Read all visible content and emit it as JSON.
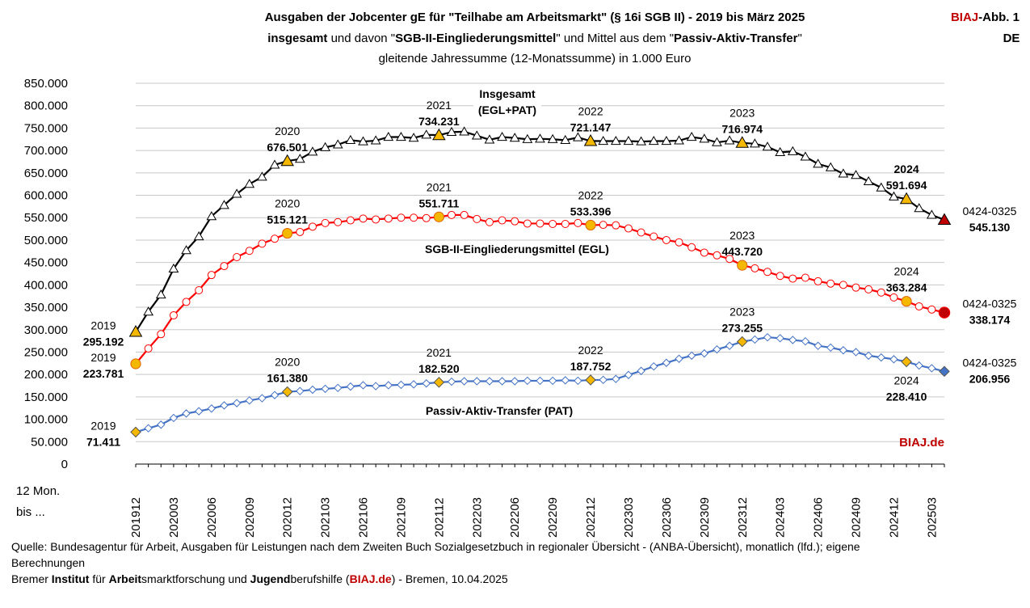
{
  "header": {
    "title_line1": "Ausgaben der Jobcenter gE für \"Teilhabe am Arbeitsmarkt\" (§ 16i SGB II) - 2019 bis März 2025",
    "title_line2_parts": [
      "insgesamt",
      " und davon \"",
      "SGB-II-Eingliederungsmittel",
      "\" und Mittel aus dem \"",
      "Passiv-Aktiv-Transfer",
      "\""
    ],
    "title_line3": "gleitende  Jahressumme (12-Monatssumme) in 1.000 Euro",
    "badge_brand": "BIAJ",
    "badge_rest": "-Abb. 1",
    "badge_region": "DE"
  },
  "chart_data": {
    "type": "line",
    "xlabel_line1": "12 Mon.",
    "xlabel_line2": "bis ...",
    "ylim": [
      0,
      850000
    ],
    "y_ticks": [
      "0",
      "50.000",
      "100.000",
      "150.000",
      "200.000",
      "250.000",
      "300.000",
      "350.000",
      "400.000",
      "450.000",
      "500.000",
      "550.000",
      "600.000",
      "650.000",
      "700.000",
      "750.000",
      "800.000",
      "850.000"
    ],
    "x_tick_labels": [
      "201912",
      "202003",
      "202006",
      "202009",
      "202012",
      "202103",
      "202106",
      "202109",
      "202112",
      "202203",
      "202206",
      "202209",
      "202212",
      "202303",
      "202306",
      "202309",
      "202312",
      "202403",
      "202406",
      "202409",
      "202412",
      "202503"
    ],
    "x_tick_index": [
      0,
      3,
      6,
      9,
      12,
      15,
      18,
      21,
      24,
      27,
      30,
      33,
      36,
      39,
      42,
      45,
      48,
      51,
      54,
      57,
      60,
      63
    ],
    "series": [
      {
        "key": "total",
        "name": "Insgesamt (EGL+PAT)",
        "name_line1": "Insgesamt",
        "name_line2": "(EGL+PAT)",
        "color": "#000000",
        "marker": "triangle",
        "highlight_color": "#f5b800",
        "end_color": "#c00000",
        "values": [
          295192,
          340000,
          378000,
          436000,
          477000,
          508000,
          553000,
          578000,
          603000,
          625000,
          641000,
          668000,
          676501,
          681000,
          697000,
          707000,
          713000,
          723000,
          720000,
          722000,
          730000,
          730000,
          728000,
          735000,
          734231,
          741000,
          742000,
          733000,
          724000,
          730000,
          728000,
          725000,
          726000,
          725000,
          723000,
          729000,
          721147,
          721000,
          721000,
          721000,
          720000,
          721000,
          721000,
          722000,
          730000,
          726000,
          718000,
          722000,
          716974,
          715000,
          708000,
          696000,
          698000,
          686000,
          670000,
          662000,
          648000,
          645000,
          631000,
          617000,
          597000,
          591694,
          571000,
          556000,
          545130
        ]
      },
      {
        "key": "egl",
        "name": "SGB-II-Eingliederungsmittel (EGL)",
        "color": "#ff0000",
        "marker": "circle",
        "highlight_color": "#f5b800",
        "end_color": "#c00000",
        "values": [
          223781,
          258000,
          290000,
          332000,
          362000,
          388000,
          422000,
          442000,
          462000,
          476000,
          492000,
          503000,
          515121,
          518000,
          530000,
          538000,
          540000,
          544000,
          548000,
          546000,
          548000,
          550000,
          550000,
          549000,
          551711,
          556000,
          556000,
          547000,
          540000,
          544000,
          542000,
          537000,
          537000,
          536000,
          536000,
          538000,
          533396,
          534000,
          533000,
          526000,
          517000,
          508000,
          500000,
          495000,
          484000,
          472000,
          466000,
          458000,
          443720,
          437000,
          429000,
          420000,
          414000,
          416000,
          408000,
          403000,
          400000,
          394000,
          390000,
          383000,
          372000,
          363284,
          352000,
          345000,
          338174
        ]
      },
      {
        "key": "pat",
        "name": "Passiv-Aktiv-Transfer (PAT)",
        "color": "#4472c4",
        "marker": "diamond",
        "highlight_color": "#f5b800",
        "end_color": "#4472c4",
        "values": [
          71411,
          80000,
          88000,
          103000,
          113000,
          118000,
          124000,
          131000,
          136000,
          142000,
          147000,
          154000,
          161380,
          163000,
          166000,
          168000,
          170000,
          173000,
          176000,
          174000,
          176000,
          177000,
          178000,
          180000,
          182520,
          184000,
          185000,
          185000,
          185000,
          185000,
          185000,
          186000,
          186000,
          186000,
          187000,
          186000,
          187752,
          188000,
          190000,
          199000,
          208000,
          218000,
          226000,
          235000,
          242000,
          247000,
          256000,
          264000,
          273255,
          278000,
          283000,
          281000,
          277000,
          274000,
          264000,
          260000,
          254000,
          250000,
          242000,
          238000,
          234000,
          228410,
          220000,
          214000,
          206956
        ]
      }
    ],
    "highlight_index": [
      0,
      12,
      24,
      36,
      48,
      61,
      64
    ],
    "annotations": [
      {
        "series": "total",
        "idx": 0,
        "year": "2019",
        "value": "295.192",
        "pos": "left"
      },
      {
        "series": "total",
        "idx": 12,
        "year": "2020",
        "value": "676.501",
        "pos": "above"
      },
      {
        "series": "total",
        "idx": 24,
        "year": "2021",
        "value": "734.231",
        "pos": "above"
      },
      {
        "series": "total",
        "idx": 36,
        "year": "2022",
        "value": "721.147",
        "pos": "above"
      },
      {
        "series": "total",
        "idx": 48,
        "year": "2023",
        "value": "716.974",
        "pos": "above"
      },
      {
        "series": "total",
        "idx": 61,
        "year": "2024",
        "value": "591.694",
        "pos": "above",
        "bold_year": true
      },
      {
        "series": "total",
        "idx": 64,
        "year": "0424-0325",
        "value": "545.130",
        "pos": "right"
      },
      {
        "series": "egl",
        "idx": 0,
        "year": "2019",
        "value": "223.781",
        "pos": "left"
      },
      {
        "series": "egl",
        "idx": 12,
        "year": "2020",
        "value": "515.121",
        "pos": "above"
      },
      {
        "series": "egl",
        "idx": 24,
        "year": "2021",
        "value": "551.711",
        "pos": "above"
      },
      {
        "series": "egl",
        "idx": 36,
        "year": "2022",
        "value": "533.396",
        "pos": "above"
      },
      {
        "series": "egl",
        "idx": 48,
        "year": "2023",
        "value": "443.720",
        "pos": "above"
      },
      {
        "series": "egl",
        "idx": 61,
        "year": "2024",
        "value": "363.284",
        "pos": "above"
      },
      {
        "series": "egl",
        "idx": 64,
        "year": "0424-0325",
        "value": "338.174",
        "pos": "right"
      },
      {
        "series": "pat",
        "idx": 0,
        "year": "2019",
        "value": "71.411",
        "pos": "left"
      },
      {
        "series": "pat",
        "idx": 12,
        "year": "2020",
        "value": "161.380",
        "pos": "above"
      },
      {
        "series": "pat",
        "idx": 24,
        "year": "2021",
        "value": "182.520",
        "pos": "above"
      },
      {
        "series": "pat",
        "idx": 36,
        "year": "2022",
        "value": "187.752",
        "pos": "above"
      },
      {
        "series": "pat",
        "idx": 48,
        "year": "2023",
        "value": "273.255",
        "pos": "above"
      },
      {
        "series": "pat",
        "idx": 61,
        "year": "2024",
        "value": "228.410",
        "pos": "below"
      },
      {
        "series": "pat",
        "idx": 64,
        "year": "0424-0325",
        "value": "206.956",
        "pos": "right"
      }
    ],
    "series_labels": {
      "egl": "SGB-II-Eingliederungsmittel (EGL)",
      "pat": "Passiv-Aktiv-Transfer (PAT)"
    },
    "watermark": "BIAJ.de"
  },
  "footer": {
    "source_line1": "Quelle: Bundesagentur für Arbeit, Ausgaben für Leistungen nach dem Zweiten Buch Sozialgesetzbuch in regionaler Übersicht - (ANBA-Übersicht), monatlich (lfd.); eigene",
    "source_line2": "Berechnungen",
    "inst_parts": [
      "Bremer ",
      "Institut",
      " für ",
      "Arbeit",
      "smarktforschung und ",
      "Jugend",
      "berufshilfe (",
      "BIAJ.de",
      ") - Bremen, 10.04.2025"
    ]
  }
}
